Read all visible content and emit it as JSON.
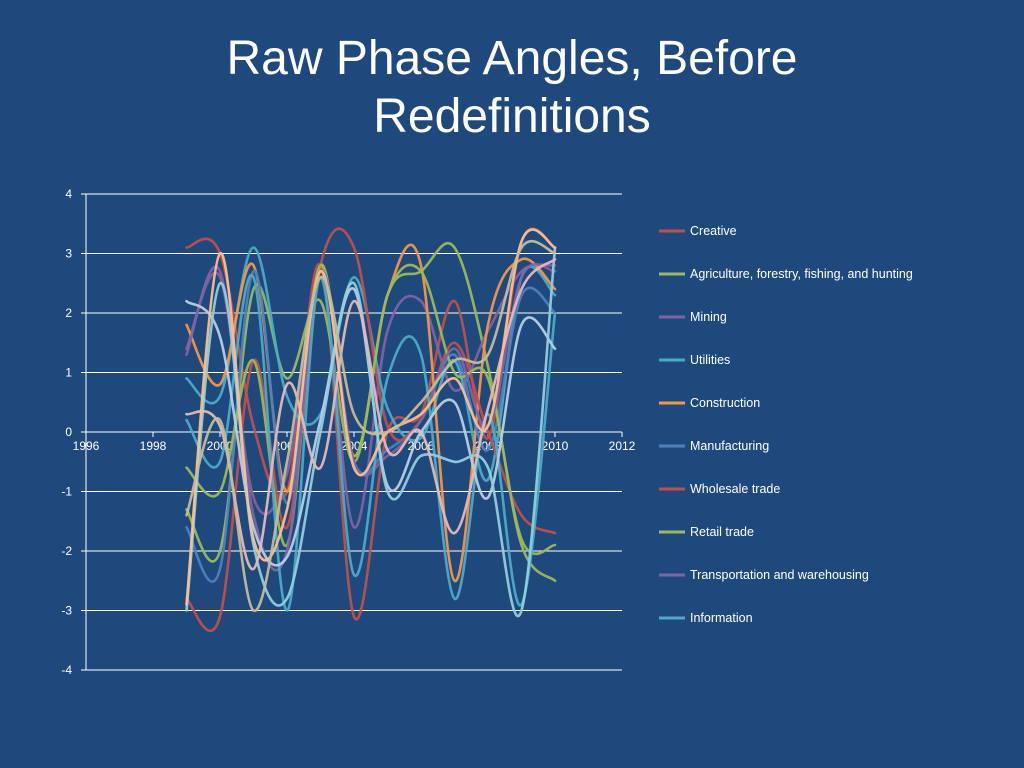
{
  "slide": {
    "title": "Raw Phase Angles, Before\nRedefinitions"
  },
  "chart_data": {
    "type": "line",
    "title": "Raw Phase Angles, Before Redefinitions",
    "xlabel": "",
    "ylabel": "",
    "xlim": [
      1996,
      2012
    ],
    "ylim": [
      -4,
      4
    ],
    "x_ticks": [
      1996,
      1998,
      2000,
      2002,
      2004,
      2006,
      2008,
      2010,
      2012
    ],
    "y_ticks": [
      4,
      3,
      2,
      1,
      0,
      -1,
      -2,
      -3,
      -4
    ],
    "grid": true,
    "legend_position": "right",
    "x": [
      1999,
      2000,
      2001,
      2002,
      2003,
      2004,
      2005,
      2006,
      2007,
      2008,
      2009,
      2010
    ],
    "series": [
      {
        "name": "Creative",
        "color": "#c0504d",
        "values": [
          3.1,
          3.0,
          0.1,
          -1.0,
          2.8,
          -3.1,
          0.0,
          0.3,
          2.2,
          -0.1,
          3.2,
          3.1
        ]
      },
      {
        "name": "Agriculture, forestry, fishing, and hunting",
        "color": "#9bbb59",
        "values": [
          -1.3,
          -2.0,
          2.4,
          0.9,
          2.2,
          -0.5,
          2.3,
          2.7,
          3.1,
          1.1,
          -1.8,
          -1.9
        ]
      },
      {
        "name": "Mining",
        "color": "#8064a2",
        "values": [
          1.4,
          2.6,
          -1.1,
          -0.7,
          2.6,
          -1.6,
          1.7,
          2.2,
          0.7,
          1.7,
          2.7,
          2.8
        ]
      },
      {
        "name": "Utilities",
        "color": "#4bacc6",
        "values": [
          0.9,
          0.6,
          3.1,
          0.6,
          0.3,
          2.6,
          0.4,
          -0.1,
          1.2,
          -0.8,
          2.6,
          2.3
        ]
      },
      {
        "name": "Construction",
        "color": "#f79646",
        "values": [
          1.8,
          0.8,
          2.8,
          -1.0,
          2.8,
          -0.4,
          2.3,
          2.8,
          -2.5,
          1.8,
          2.9,
          2.4
        ]
      },
      {
        "name": "Manufacturing",
        "color": "#4f81bd",
        "values": [
          -1.6,
          -2.3,
          2.7,
          -1.2,
          2.7,
          -0.5,
          -0.3,
          0.2,
          1.3,
          -0.3,
          2.3,
          2.0
        ]
      },
      {
        "name": "Wholesale trade",
        "color": "#c0504d",
        "values": [
          -2.8,
          -3.1,
          1.2,
          -1.6,
          2.8,
          3.1,
          0.1,
          0.2,
          1.5,
          0.0,
          -1.4,
          -1.7
        ]
      },
      {
        "name": "Retail trade",
        "color": "#9bbb59",
        "values": [
          -0.6,
          -1.0,
          1.2,
          -1.9,
          2.8,
          -0.4,
          2.3,
          2.7,
          1.0,
          0.9,
          -1.9,
          -2.5
        ]
      },
      {
        "name": "Transportation and warehousing",
        "color": "#8064a2",
        "values": [
          1.3,
          2.7,
          -1.4,
          -2.0,
          2.7,
          -0.5,
          -0.4,
          0.2,
          1.4,
          0.1,
          2.6,
          2.7
        ]
      },
      {
        "name": "Information",
        "color": "#4bacc6",
        "values": [
          0.2,
          -0.5,
          2.6,
          -3.0,
          2.6,
          -2.4,
          0.9,
          1.3,
          -2.8,
          0.3,
          -2.9,
          2.0
        ]
      },
      {
        "name": "",
        "color": "#b9cde5",
        "values": [
          2.2,
          1.6,
          -1.6,
          -2.1,
          0.2,
          2.4,
          -0.9,
          0.0,
          0.5,
          -1.1,
          1.8,
          1.4
        ]
      },
      {
        "name": "",
        "color": "#93cddd",
        "values": [
          -3.0,
          2.5,
          -1.9,
          -2.8,
          0.0,
          2.5,
          -1.0,
          -0.4,
          -0.5,
          -0.6,
          -3.0,
          3.1
        ]
      },
      {
        "name": "",
        "color": "#e6b9b8",
        "values": [
          0.3,
          0.1,
          -2.3,
          0.8,
          -0.6,
          2.2,
          -0.3,
          0.0,
          -1.7,
          0.4,
          2.4,
          2.9
        ]
      },
      {
        "name": "",
        "color": "#fac090",
        "values": [
          -2.9,
          3.0,
          -1.8,
          -1.3,
          2.7,
          -0.6,
          0.0,
          0.3,
          0.9,
          0.1,
          3.2,
          3.1
        ]
      },
      {
        "name": "",
        "color": "#c4bd97",
        "values": [
          -1.4,
          0.2,
          -3.0,
          -0.5,
          2.6,
          0.3,
          0.0,
          0.5,
          1.2,
          1.3,
          3.1,
          3.0
        ]
      }
    ]
  }
}
